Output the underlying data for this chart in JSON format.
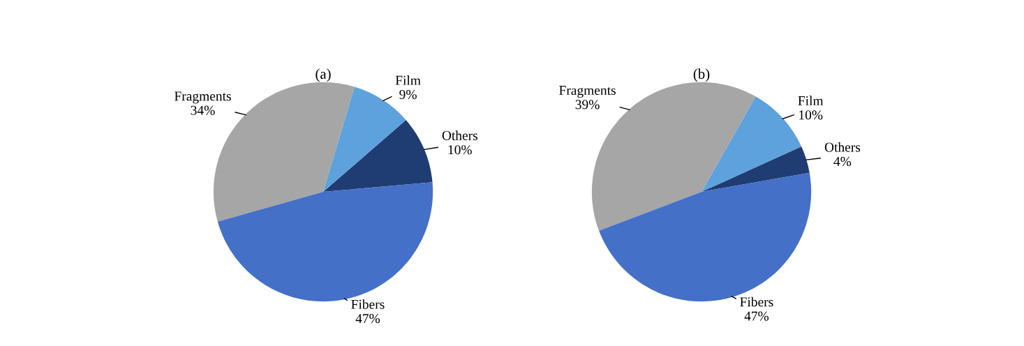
{
  "chart_data": [
    {
      "type": "pie",
      "title": "(a)",
      "categories": [
        "Others",
        "Film",
        "Fragments",
        "Fibers"
      ],
      "values": [
        10,
        9,
        34,
        47
      ],
      "value_labels": [
        "10%",
        "9%",
        "34%",
        "47%"
      ],
      "colors": [
        "#1f3d73",
        "#5da2dc",
        "#a6a6a6",
        "#4470c8"
      ]
    },
    {
      "type": "pie",
      "title": "(b)",
      "categories": [
        "Others",
        "Film",
        "Fragments",
        "Fibers"
      ],
      "values": [
        4,
        10,
        39,
        47
      ],
      "value_labels": [
        "4%",
        "10%",
        "39%",
        "47%"
      ],
      "colors": [
        "#1f3d73",
        "#5da2dc",
        "#a6a6a6",
        "#4470c8"
      ]
    }
  ]
}
